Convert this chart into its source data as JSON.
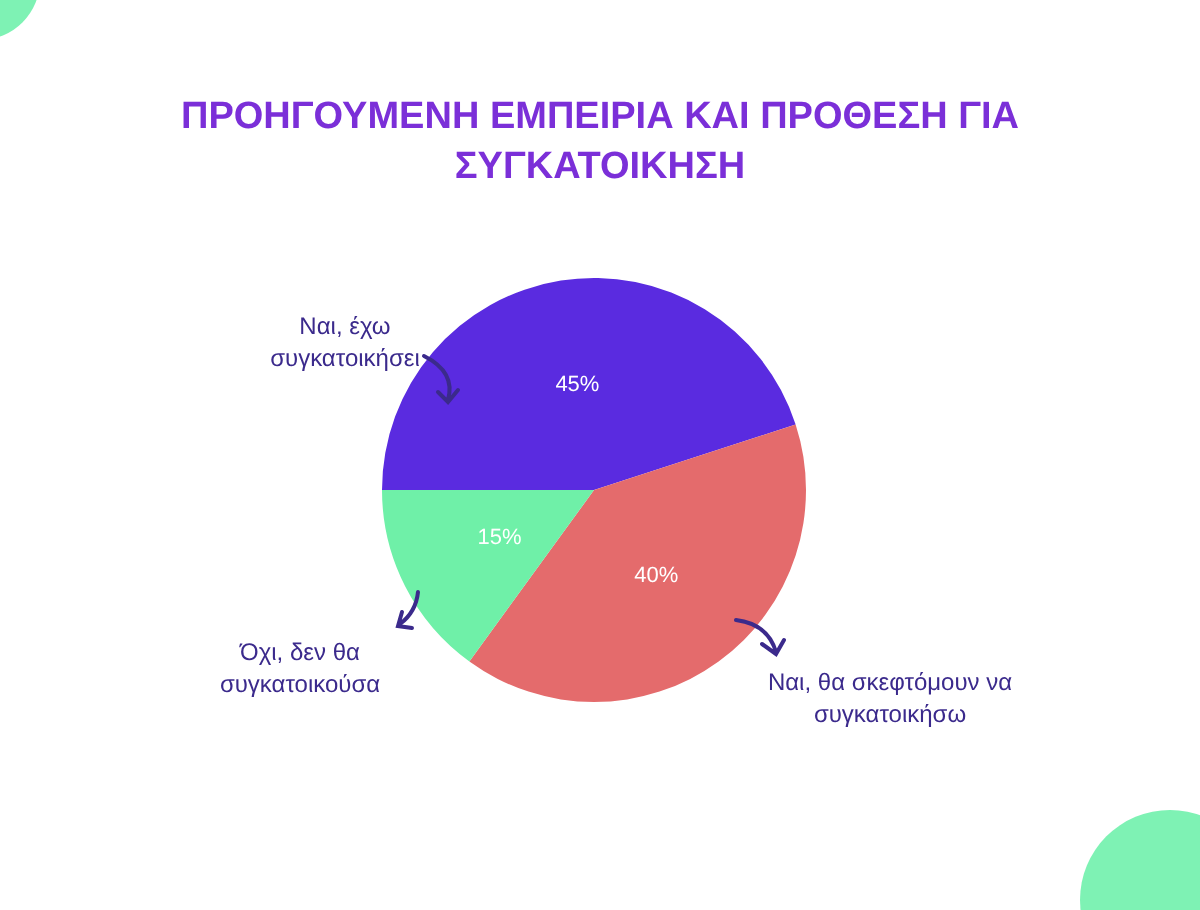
{
  "chart_data": {
    "type": "pie",
    "title": "ΠΡΟΗΓΟΥΜΕΝΗ ΕΜΠΕΙΡΙΑ ΚΑΙ ΠΡΟΘΕΣΗ ΓΙΑ ΣΥΓΚΑΤΟΙΚΗΣΗ",
    "categories": [
      "Ναι, έχω συγκατοικήσει",
      "Ναι, θα σκεφτόμουν να συγκατοικήσω",
      "Όχι, δεν θα συγκατοικούσα"
    ],
    "values": [
      45,
      40,
      15
    ],
    "value_labels": [
      "45%",
      "40%",
      "15%"
    ],
    "colors": [
      "#5a2be0",
      "#e46b6c",
      "#6ff0a8"
    ],
    "legend": false
  }
}
